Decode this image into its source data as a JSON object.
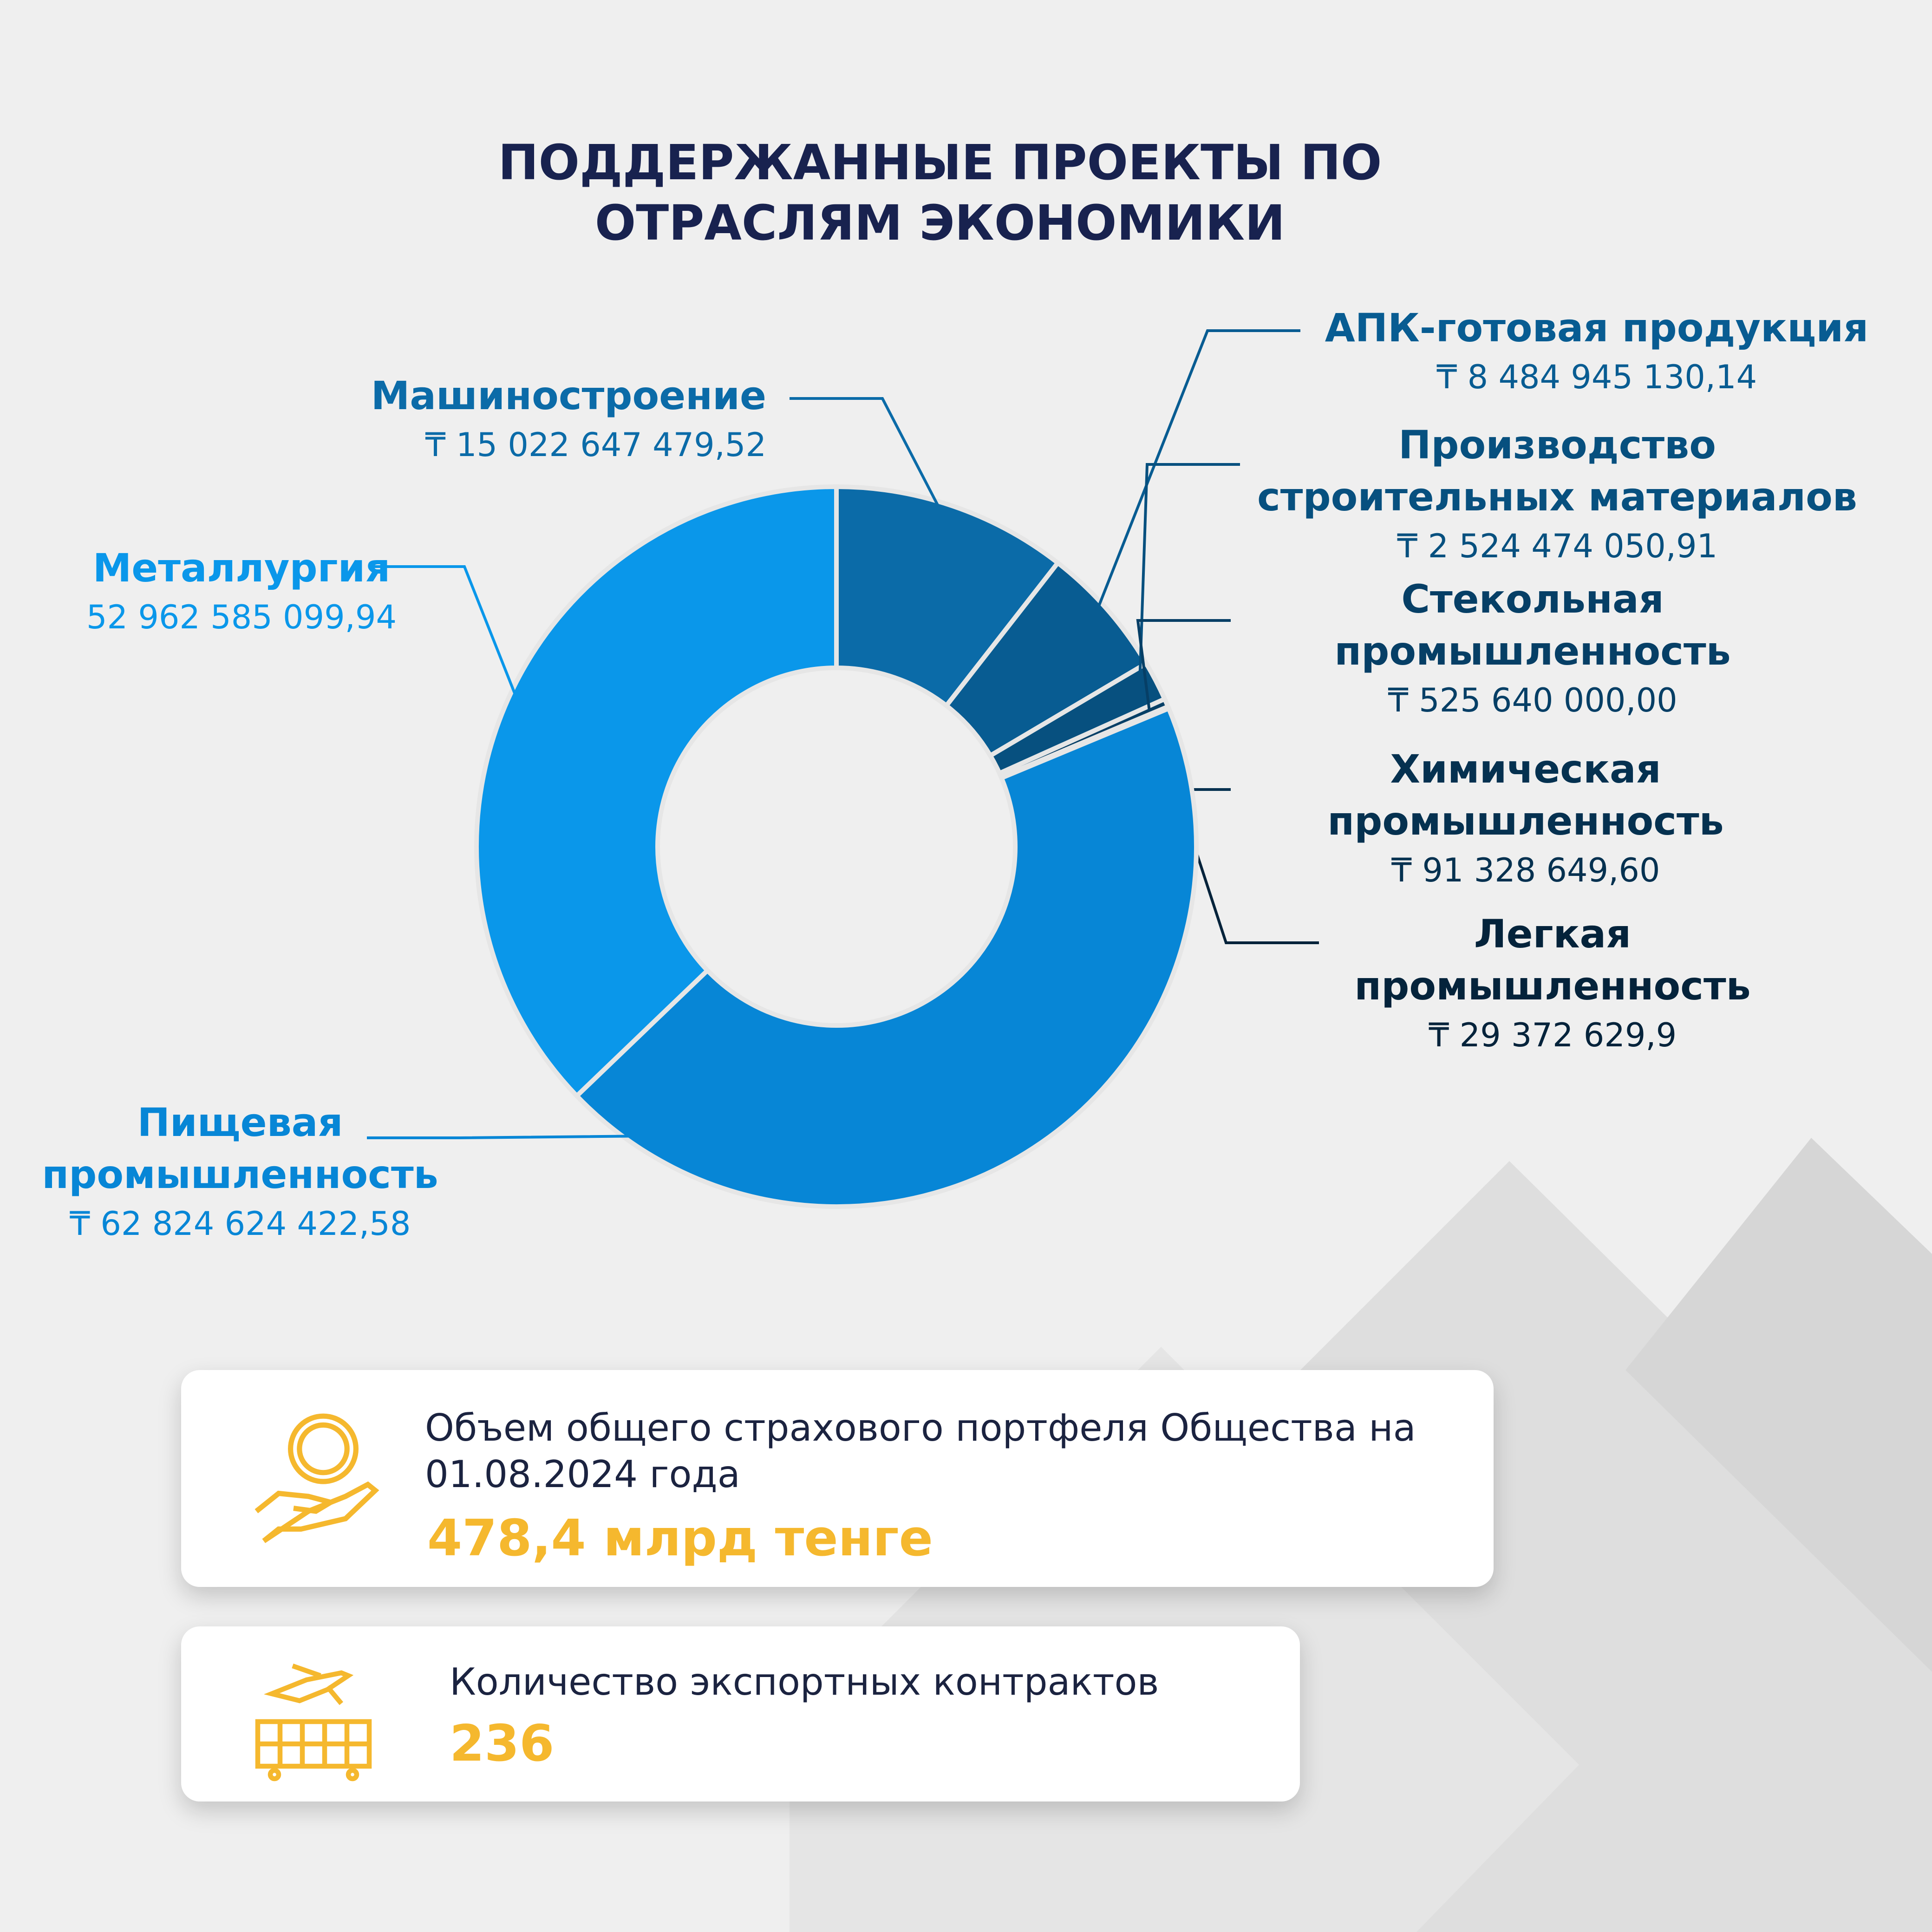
{
  "chart_data": {
    "type": "donut",
    "title": "ПОДДЕРЖАННЫЕ ПРОЕКТЫ ПО ОТРАСЛЯМ ЭКОНОМИКИ",
    "categories": [
      "Машиностроение",
      "АПК-готовая продукция",
      "Производство строительных материалов",
      "Стекольная промышленность",
      "Химическая промышленность",
      "Легкая промышленность",
      "Пищевая промышленность",
      "Металлургия"
    ],
    "values": [
      15022647479.52,
      8484945130.14,
      2524474050.91,
      525640000.0,
      91328649.6,
      29372629.9,
      62824624422.58,
      52962585099.94
    ],
    "value_labels": [
      "₸ 15 022 647 479,52",
      "₸ 8 484 945 130,14",
      "₸ 2 524 474 050,91",
      "₸ 525 640 000,00",
      "₸ 91 328 649,60",
      "₸ 29 372 629,9",
      "₸ 62 824 624 422,58",
      "52 962 585 099,94"
    ],
    "colors": [
      "#0b6ba8",
      "#085c92",
      "#07507f",
      "#063f66",
      "#053150",
      "#04233b",
      "#0786d6",
      "#0a97ea"
    ]
  },
  "cards": [
    {
      "text": "Объем общего страхового портфеля Общества на 01.08.2024 года",
      "value": "478,4 млрд тенге"
    },
    {
      "text": "Количество экспортных контрактов",
      "value": "236"
    }
  ]
}
